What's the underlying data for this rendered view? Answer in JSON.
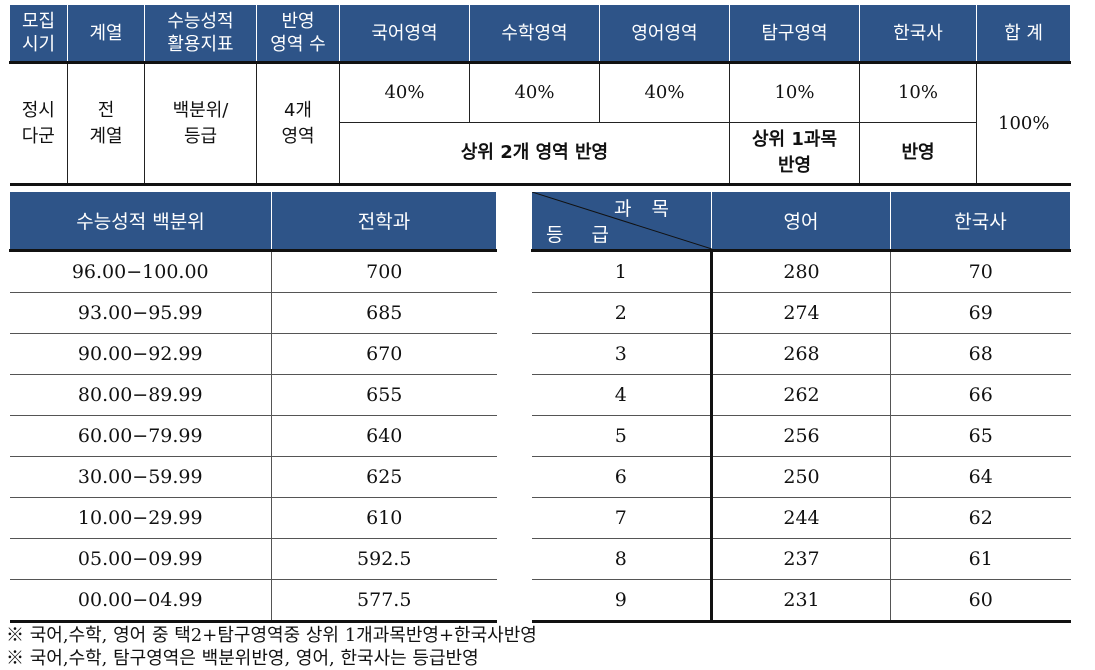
{
  "top": {
    "headers": [
      "모집\n시기",
      "계열",
      "수능성적\n활용지표",
      "반영\n영역 수",
      "국어영역",
      "수학영역",
      "영어영역",
      "탐구영역",
      "한국사",
      "합 계"
    ],
    "period": "정시\n다군",
    "track": "전\n계열",
    "indicator": "백분위/\n등급",
    "areas": "4개\n영역",
    "pct_korean": "40%",
    "pct_math": "40%",
    "pct_english": "40%",
    "pct_inquiry": "10%",
    "pct_history": "10%",
    "pct_total": "100%",
    "note_top2": "상위 2개 영역 반영",
    "note_inquiry": "상위 1과목\n반영",
    "note_history": "반영"
  },
  "left_table": {
    "headers": [
      "수능성적 백분위",
      "전학과"
    ],
    "rows": [
      [
        "96.00−100.00",
        "700"
      ],
      [
        "93.00−95.99",
        "685"
      ],
      [
        "90.00−92.99",
        "670"
      ],
      [
        "80.00−89.99",
        "655"
      ],
      [
        "60.00−79.99",
        "640"
      ],
      [
        "30.00−59.99",
        "625"
      ],
      [
        "10.00−29.99",
        "610"
      ],
      [
        "05.00−09.99",
        "592.5"
      ],
      [
        "00.00−04.99",
        "577.5"
      ]
    ]
  },
  "right_table": {
    "diag_top": "과목",
    "diag_bottom": "등급",
    "headers": [
      "영어",
      "한국사"
    ],
    "rows": [
      [
        "1",
        "280",
        "70"
      ],
      [
        "2",
        "274",
        "69"
      ],
      [
        "3",
        "268",
        "68"
      ],
      [
        "4",
        "262",
        "66"
      ],
      [
        "5",
        "256",
        "65"
      ],
      [
        "6",
        "250",
        "64"
      ],
      [
        "7",
        "244",
        "62"
      ],
      [
        "8",
        "237",
        "61"
      ],
      [
        "9",
        "231",
        "60"
      ]
    ]
  },
  "notes": [
    "※ 국어,수학, 영어 중 택2+탐구영역중 상위 1개과목반영+한국사반영",
    "※ 국어,수학, 탐구영역은 백분위반영, 영어, 한국사는 등급반영"
  ],
  "colors": {
    "header_bg": "#2e5488",
    "header_text": "#ffffff"
  }
}
